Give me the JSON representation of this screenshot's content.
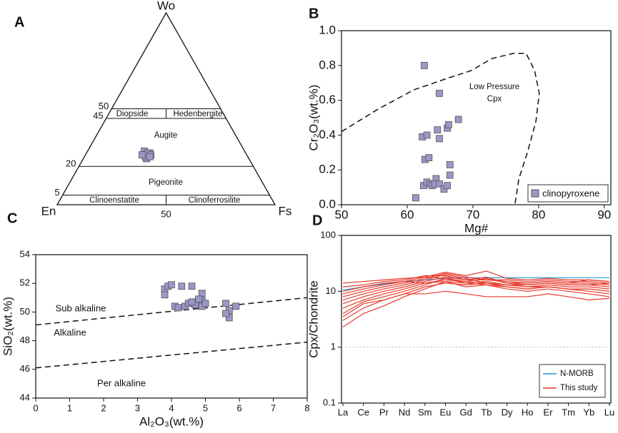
{
  "chart_data": [
    {
      "type": "ternary",
      "label": "A",
      "vertices": {
        "top": "Wo",
        "left": "En",
        "right": "Fs"
      },
      "wo_ticks": [
        50,
        45,
        20,
        5
      ],
      "fs_ticks": [
        50
      ],
      "fields": [
        "Diopside",
        "Hedenbergite",
        "Augite",
        "Pigeonite",
        "Clinoenstatite",
        "Clinoferrosilite"
      ],
      "color": "#9b98c8",
      "wo": [
        27,
        26,
        28,
        25,
        27,
        26,
        24,
        25,
        27,
        26,
        25,
        26
      ],
      "fs": [
        27,
        28,
        26,
        29,
        29,
        27,
        29,
        28,
        28,
        30,
        30,
        26
      ]
    },
    {
      "type": "scatter",
      "label": "B",
      "xlabel": "Mg#",
      "ylabel": "Cr₂O₃(wt.%)",
      "xlim": [
        50,
        91
      ],
      "xticks": [
        50,
        60,
        70,
        80,
        90
      ],
      "ylim": [
        0,
        1
      ],
      "yticks": [
        {
          "value": 0,
          "label": "0.0"
        },
        0.2,
        0.4,
        0.6,
        0.8,
        {
          "value": 1,
          "label": "1.0"
        }
      ],
      "series": [
        {
          "name": "clinopyroxene",
          "color": "#9b98c8",
          "x": [
            62.6,
            62.3,
            63.0,
            62.7,
            63.3,
            62.5,
            63.0,
            63.5,
            63.8,
            61.3,
            64.9,
            64.6,
            64.9,
            66.1,
            66.3,
            67.8,
            64.4,
            64.2,
            64.9,
            65.6,
            66.1,
            66.5,
            66.5
          ],
          "y": [
            0.8,
            0.39,
            0.4,
            0.26,
            0.27,
            0.11,
            0.13,
            0.12,
            0.11,
            0.04,
            0.64,
            0.43,
            0.38,
            0.44,
            0.46,
            0.49,
            0.15,
            0.12,
            0.12,
            0.09,
            0.11,
            0.17,
            0.23
          ]
        }
      ],
      "boundaries": [
        {
          "x": [
            50,
            55.6,
            61.0,
            66.4,
            69.7,
            72.9,
            76.2,
            78.1,
            79.4,
            80.1,
            79.6,
            78.3,
            77.0,
            76.4
          ],
          "y": [
            0.42,
            0.55,
            0.66,
            0.73,
            0.77,
            0.84,
            0.87,
            0.87,
            0.77,
            0.64,
            0.48,
            0.3,
            0.15,
            0.0
          ]
        }
      ],
      "annotations": [
        "Low Pressure",
        "Cpx"
      ],
      "legend": "lower right"
    },
    {
      "type": "scatter",
      "label": "C",
      "xlabel": "Al₂O₃(wt.%)",
      "ylabel": "SiO₂(wt.%)",
      "xlim": [
        0,
        8
      ],
      "xticks": [
        0,
        1,
        2,
        3,
        4,
        5,
        6,
        7,
        8
      ],
      "ylim": [
        44,
        54
      ],
      "yticks": [
        44,
        46,
        48,
        50,
        52,
        54
      ],
      "series": [
        {
          "color": "#9b98c8",
          "x": [
            3.8,
            3.9,
            4.0,
            3.8,
            4.1,
            4.3,
            4.6,
            4.2,
            4.4,
            4.5,
            4.7,
            4.9,
            4.9,
            4.9,
            5.0,
            4.8,
            4.6,
            5.6,
            5.9,
            5.7,
            5.7,
            5.6
          ],
          "y": [
            51.6,
            51.8,
            51.9,
            51.2,
            50.4,
            51.8,
            51.8,
            50.3,
            50.4,
            50.6,
            50.5,
            51.3,
            50.8,
            50.4,
            50.6,
            50.9,
            50.7,
            50.6,
            50.4,
            50.1,
            49.6,
            49.9
          ]
        }
      ],
      "boundaries": [
        {
          "x": [
            0,
            8
          ],
          "y": [
            49.1,
            51.0
          ]
        },
        {
          "x": [
            0,
            8
          ],
          "y": [
            46.1,
            47.9
          ]
        }
      ],
      "fields": [
        "Sub alkaline",
        "Alkaline",
        "Per alkaline"
      ]
    },
    {
      "type": "line",
      "label": "D",
      "ylabel": "Cpx/Chondrite",
      "categories": [
        "La",
        "Ce",
        "Pr",
        "Nd",
        "Sm",
        "Eu",
        "Gd",
        "Tb",
        "Dy",
        "Ho",
        "Er",
        "Tm",
        "Yb",
        "Lu"
      ],
      "ylim": [
        0.1,
        100
      ],
      "log_scale": true,
      "yticks": [
        0.1,
        1,
        10,
        100
      ],
      "reference_line": 1,
      "series": [
        {
          "name": "N-MORB",
          "color": "#1f9bd7",
          "values": [
            10.5,
            12,
            13.5,
            15,
            16,
            17,
            17.5,
            17.5,
            17.5,
            17.5,
            17.5,
            17.5,
            17.5,
            17.5
          ]
        },
        {
          "name": "This study",
          "color": "#e8392b",
          "samples": [
            [
              2.3,
              4,
              5.5,
              8,
              11,
              15,
              12,
              13,
              11,
              10,
              11,
              10,
              9,
              8
            ],
            [
              3,
              5,
              7,
              9,
              12,
              14,
              13,
              14,
              12,
              11,
              12,
              11,
              10,
              9
            ],
            [
              4,
              6.5,
              8,
              10,
              13,
              17,
              14,
              15,
              13,
              12,
              13,
              12,
              12,
              11
            ],
            [
              5,
              7,
              9,
              11,
              14,
              16,
              15,
              17,
              14,
              13,
              14,
              13,
              13,
              12
            ],
            [
              6,
              8,
              10,
              12,
              15,
              18,
              16,
              16,
              15,
              14,
              15,
              14,
              14,
              13
            ],
            [
              7,
              9,
              11,
              13,
              16,
              20,
              17,
              14,
              13,
              12,
              12,
              11,
              11,
              10
            ],
            [
              8,
              10,
              12,
              14,
              17,
              21,
              18,
              16,
              16,
              15,
              16,
              15,
              15,
              14
            ],
            [
              9,
              11,
              13,
              15,
              18,
              22,
              19,
              23,
              17,
              16,
              17,
              16,
              16,
              15
            ],
            [
              10,
              12,
              14,
              15,
              14,
              15,
              14,
              13,
              12,
              11,
              12,
              11,
              11,
              10
            ],
            [
              12,
              13,
              15,
              16,
              19,
              19,
              16,
              18,
              14,
              14,
              15,
              14,
              16,
              15
            ],
            [
              14,
              15,
              16,
              17,
              18,
              17,
              15,
              14,
              13,
              13,
              14,
              13,
              13,
              14
            ],
            [
              3.5,
              6,
              7,
              9,
              9,
              10,
              9,
              8,
              8,
              8,
              9,
              8,
              7,
              7.5
            ]
          ]
        }
      ],
      "legend": "lower right"
    }
  ]
}
